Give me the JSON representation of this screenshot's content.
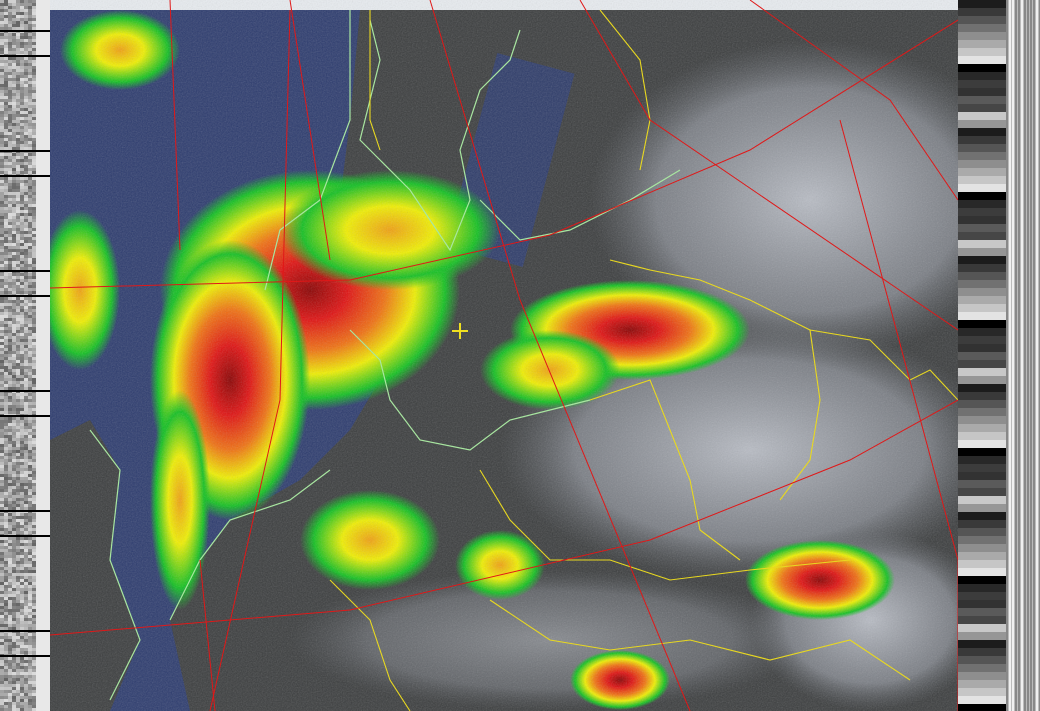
{
  "image": {
    "type": "NOAA APT weather satellite image with precipitation color enhancement",
    "colors": {
      "ocean": "#2c3b6e",
      "land": "#3a3c3c",
      "cloud": "#9a9fa6",
      "coastline": "#a8e6a0",
      "borders": "#e8d820",
      "graticule": "#e01818",
      "precip_light": "#10c020",
      "precip_medium": "#f0f000",
      "precip_heavy": "#e01010",
      "marker": "#f0e020"
    },
    "marker_icon": "crosshair-plus"
  }
}
